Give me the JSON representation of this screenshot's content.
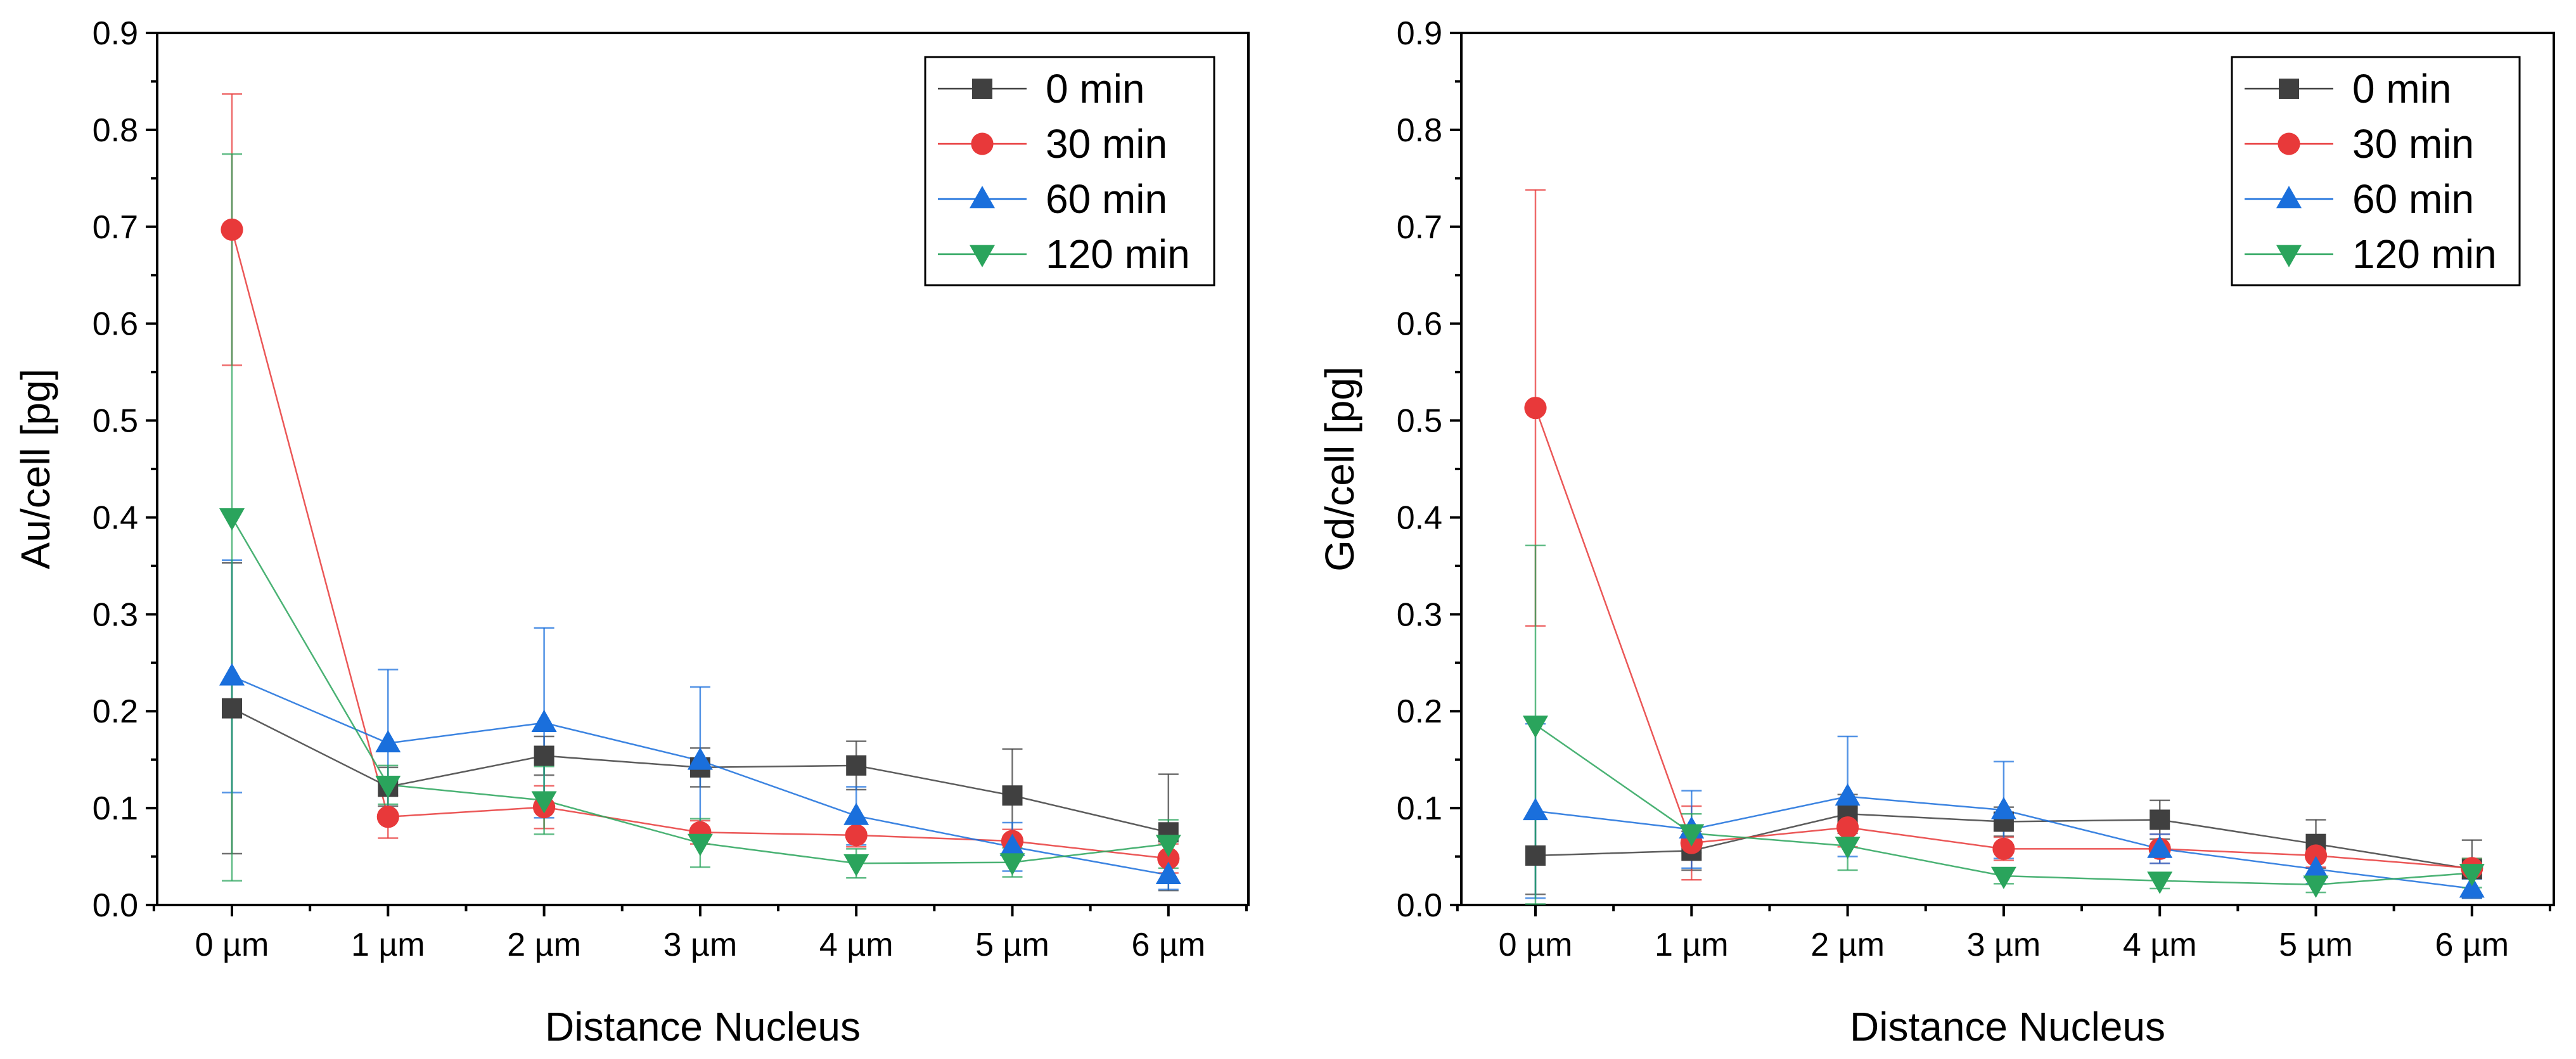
{
  "chart_data": [
    {
      "type": "line",
      "x_categories": [
        "0 µm",
        "1 µm",
        "2 µm",
        "3 µm",
        "4 µm",
        "5 µm",
        "6 µm"
      ],
      "xlabel": "Distance Nucleus",
      "ylabel": "Au/cell [pg]",
      "ylim": [
        0,
        0.9
      ],
      "yticks": [
        "0.0",
        "0.1",
        "0.2",
        "0.3",
        "0.4",
        "0.5",
        "0.6",
        "0.7",
        "0.8",
        "0.9"
      ],
      "legend_position": "top-right",
      "series": [
        {
          "name": "0 min",
          "marker": "square",
          "color": "#404040",
          "values": [
            0.203,
            0.122,
            0.154,
            0.142,
            0.144,
            0.113,
            0.075
          ],
          "err": [
            0.15,
            0.02,
            0.02,
            0.02,
            0.025,
            0.048,
            0.06
          ]
        },
        {
          "name": "30 min",
          "marker": "circle",
          "color": "#e8393a",
          "values": [
            0.697,
            0.091,
            0.101,
            0.075,
            0.072,
            0.066,
            0.048
          ],
          "err": [
            0.14,
            0.022,
            0.022,
            0.012,
            0.012,
            0.012,
            0.015
          ]
        },
        {
          "name": "60 min",
          "marker": "triangle-up",
          "color": "#1a6fdc",
          "values": [
            0.236,
            0.167,
            0.188,
            0.149,
            0.092,
            0.06,
            0.031
          ],
          "err": [
            0.12,
            0.076,
            0.098,
            0.076,
            0.03,
            0.025,
            0.015
          ]
        },
        {
          "name": "120 min",
          "marker": "triangle-down",
          "color": "#2aa45c",
          "values": [
            0.4,
            0.124,
            0.108,
            0.064,
            0.043,
            0.044,
            0.063
          ],
          "err": [
            0.375,
            0.02,
            0.035,
            0.025,
            0.015,
            0.015,
            0.025
          ]
        }
      ]
    },
    {
      "type": "line",
      "x_categories": [
        "0 µm",
        "1 µm",
        "2 µm",
        "3 µm",
        "4 µm",
        "5 µm",
        "6 µm"
      ],
      "xlabel": "Distance Nucleus",
      "ylabel": "Gd/cell [pg]",
      "ylim": [
        0,
        0.9
      ],
      "yticks": [
        "0.0",
        "0.1",
        "0.2",
        "0.3",
        "0.4",
        "0.5",
        "0.6",
        "0.7",
        "0.8",
        "0.9"
      ],
      "legend_position": "top-right",
      "series": [
        {
          "name": "0 min",
          "marker": "square",
          "color": "#404040",
          "values": [
            0.051,
            0.056,
            0.094,
            0.086,
            0.088,
            0.063,
            0.037
          ],
          "err": [
            0.04,
            0.02,
            0.02,
            0.015,
            0.02,
            0.025,
            0.03
          ]
        },
        {
          "name": "30 min",
          "marker": "circle",
          "color": "#e8393a",
          "values": [
            0.513,
            0.064,
            0.08,
            0.058,
            0.058,
            0.051,
            0.038
          ],
          "err": [
            0.225,
            0.038,
            0.02,
            0.012,
            0.015,
            0.012,
            0.01
          ]
        },
        {
          "name": "60 min",
          "marker": "triangle-up",
          "color": "#1a6fdc",
          "values": [
            0.097,
            0.078,
            0.112,
            0.098,
            0.058,
            0.037,
            0.017
          ],
          "err": [
            0.09,
            0.04,
            0.062,
            0.05,
            0.015,
            0.015,
            0.01
          ]
        },
        {
          "name": "120 min",
          "marker": "triangle-down",
          "color": "#2aa45c",
          "values": [
            0.186,
            0.074,
            0.061,
            0.03,
            0.025,
            0.021,
            0.033
          ],
          "err": [
            0.185,
            0.02,
            0.025,
            0.008,
            0.008,
            0.008,
            0.015
          ]
        }
      ]
    }
  ]
}
